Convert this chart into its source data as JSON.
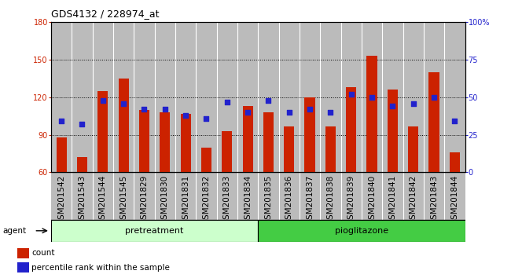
{
  "title": "GDS4132 / 228974_at",
  "samples": [
    "GSM201542",
    "GSM201543",
    "GSM201544",
    "GSM201545",
    "GSM201829",
    "GSM201830",
    "GSM201831",
    "GSM201832",
    "GSM201833",
    "GSM201834",
    "GSM201835",
    "GSM201836",
    "GSM201837",
    "GSM201838",
    "GSM201839",
    "GSM201840",
    "GSM201841",
    "GSM201842",
    "GSM201843",
    "GSM201844"
  ],
  "counts": [
    88,
    72,
    125,
    135,
    110,
    108,
    107,
    80,
    93,
    113,
    108,
    97,
    120,
    97,
    128,
    153,
    126,
    97,
    140,
    76
  ],
  "percentiles": [
    34,
    32,
    48,
    46,
    42,
    42,
    38,
    36,
    47,
    40,
    48,
    40,
    42,
    40,
    52,
    50,
    44,
    46,
    50,
    34
  ],
  "group_labels": [
    "pretreatment",
    "pioglitazone"
  ],
  "group_boundaries": [
    9.5
  ],
  "pretreatment_color": "#ccffcc",
  "pioglitazone_color": "#44cc44",
  "ylim_left": [
    60,
    180
  ],
  "ylim_right": [
    0,
    100
  ],
  "yticks_left": [
    60,
    90,
    120,
    150,
    180
  ],
  "yticks_right": [
    0,
    25,
    50,
    75,
    100
  ],
  "ytick_labels_right": [
    "0",
    "25",
    "50",
    "75",
    "100%"
  ],
  "bar_color": "#cc2200",
  "dot_color": "#2222cc",
  "bar_width": 0.5,
  "dot_size": 18,
  "col_bg_color": "#bbbbbb",
  "white_line_color": "#ffffff",
  "agent_label": "agent",
  "legend_count_label": "count",
  "legend_percentile_label": "percentile rank within the sample",
  "title_fontsize": 9,
  "tick_fontsize": 7,
  "label_fontsize": 7.5,
  "legend_fontsize": 7.5,
  "group_fontsize": 8
}
